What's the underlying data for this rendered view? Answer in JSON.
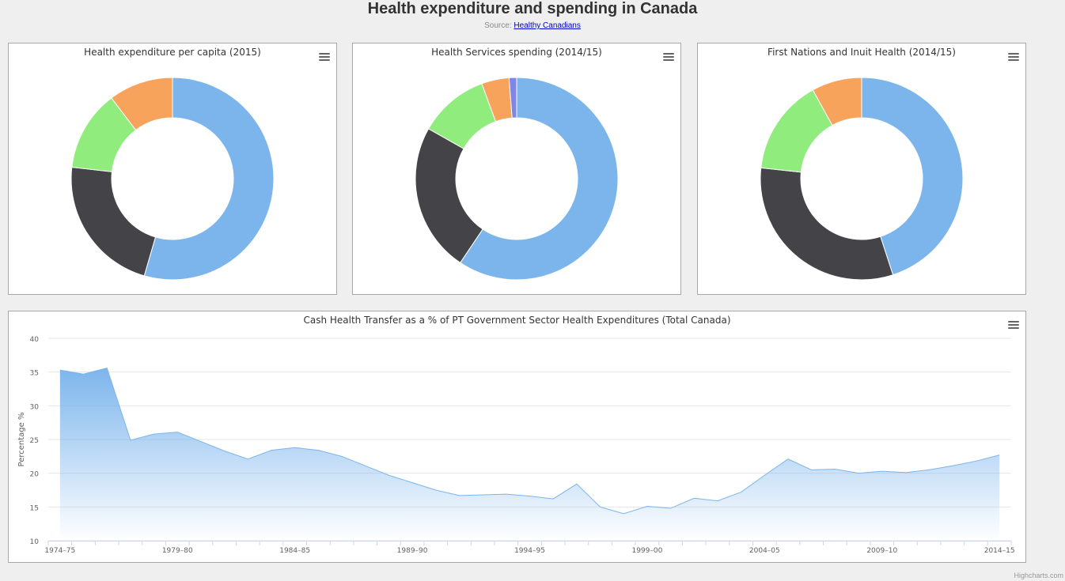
{
  "header": {
    "title": "Health expenditure and spending in Canada",
    "source_prefix": "Source: ",
    "source_link": "Healthy Canadians"
  },
  "credits": "Highcharts.com",
  "colors": {
    "blue": "#7cb5ec",
    "dark": "#434348",
    "green": "#90ed7d",
    "orange": "#f7a35c",
    "purple": "#8085e9"
  },
  "chart_data": [
    {
      "type": "pie",
      "donut": true,
      "title": "Health expenditure per capita (2015)",
      "values": [
        54.5,
        22.3,
        12.9,
        10.3
      ],
      "colors": [
        "#7cb5ec",
        "#434348",
        "#90ed7d",
        "#f7a35c"
      ]
    },
    {
      "type": "pie",
      "donut": true,
      "title": "Health Services spending (2014/15)",
      "values": [
        59.4,
        23.8,
        11.2,
        4.4,
        1.2
      ],
      "colors": [
        "#7cb5ec",
        "#434348",
        "#90ed7d",
        "#f7a35c",
        "#8085e9"
      ]
    },
    {
      "type": "pie",
      "donut": true,
      "title": "First Nations and Inuit Health (2014/15)",
      "values": [
        45.0,
        31.7,
        15.3,
        8.0
      ],
      "colors": [
        "#7cb5ec",
        "#434348",
        "#90ed7d",
        "#f7a35c"
      ]
    },
    {
      "type": "area",
      "title": "Cash Health Transfer as a % of PT Government Sector Health Expenditures (Total Canada)",
      "ylabel": "Percentage %",
      "ylim": [
        10,
        40
      ],
      "yticks": [
        10,
        15,
        20,
        25,
        30,
        35,
        40
      ],
      "grid": true,
      "xtick_labels": [
        "1974–75",
        "1979–80",
        "1984–85",
        "1989–90",
        "1994–95",
        "1999–00",
        "2004–05",
        "2009–10",
        "2014–15"
      ],
      "xtick_label_every": 5,
      "x": [
        "1974–75",
        "1975–76",
        "1976–77",
        "1977–78",
        "1978–79",
        "1979–80",
        "1980–81",
        "1981–82",
        "1982–83",
        "1983–84",
        "1984–85",
        "1985–86",
        "1986–87",
        "1987–88",
        "1988–89",
        "1989–90",
        "1990–91",
        "1991–92",
        "1992–93",
        "1993–94",
        "1994–95",
        "1995–96",
        "1996–97",
        "1997–98",
        "1998–99",
        "1999–00",
        "2000–01",
        "2001–02",
        "2002–03",
        "2003–04",
        "2004–05",
        "2005–06",
        "2006–07",
        "2007–08",
        "2008–09",
        "2009–10",
        "2010–11",
        "2011–12",
        "2012–13",
        "2013–14",
        "2014–15"
      ],
      "values": [
        35.3,
        34.7,
        35.6,
        24.9,
        25.8,
        26.1,
        24.7,
        23.3,
        22.1,
        23.4,
        23.8,
        23.4,
        22.5,
        21.1,
        19.7,
        18.6,
        17.5,
        16.7,
        16.8,
        16.9,
        16.6,
        16.2,
        18.4,
        15.0,
        14.0,
        15.1,
        14.8,
        16.3,
        15.9,
        17.2,
        19.7,
        22.1,
        20.5,
        20.6,
        20.0,
        20.3,
        20.1,
        20.5,
        21.1,
        21.8,
        22.7
      ]
    }
  ]
}
